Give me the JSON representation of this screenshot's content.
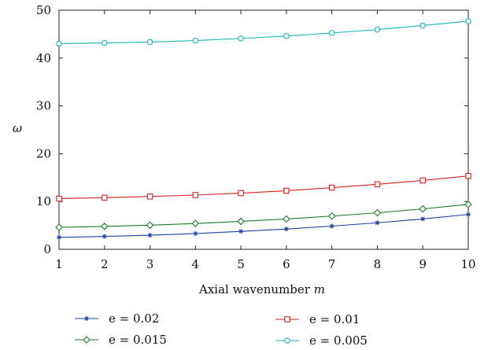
{
  "chart_data": {
    "type": "line",
    "xlabel": "Axial wavenumber",
    "xlabel_var": "m",
    "ylabel": "ω",
    "xlim": [
      1,
      10
    ],
    "ylim": [
      0,
      50
    ],
    "xticks": [
      "1",
      "2",
      "3",
      "4",
      "5",
      "6",
      "7",
      "8",
      "9",
      "10"
    ],
    "yticks": [
      "0",
      "10",
      "20",
      "30",
      "40",
      "50"
    ],
    "grid": false,
    "legend_position": "bottom",
    "x": [
      1,
      2,
      3,
      4,
      5,
      6,
      7,
      8,
      9,
      10
    ],
    "series": [
      {
        "name": "e = 0.02",
        "color": "#1f3f9f",
        "marker": "star",
        "values": [
          2.5,
          2.7,
          2.95,
          3.3,
          3.75,
          4.25,
          4.85,
          5.55,
          6.35,
          7.3
        ]
      },
      {
        "name": "e = 0.015",
        "color": "#1a7a2a",
        "marker": "diamond",
        "values": [
          4.6,
          4.8,
          5.05,
          5.4,
          5.85,
          6.35,
          6.95,
          7.65,
          8.45,
          9.4
        ]
      },
      {
        "name": "e = 0.01",
        "color": "#d42020",
        "marker": "square",
        "values": [
          10.6,
          10.8,
          11.05,
          11.35,
          11.75,
          12.25,
          12.9,
          13.6,
          14.4,
          15.35
        ]
      },
      {
        "name": "e = 0.005",
        "color": "#17b5b5",
        "marker": "circle",
        "values": [
          43.0,
          43.15,
          43.35,
          43.65,
          44.1,
          44.6,
          45.25,
          45.95,
          46.8,
          47.7
        ]
      }
    ]
  }
}
